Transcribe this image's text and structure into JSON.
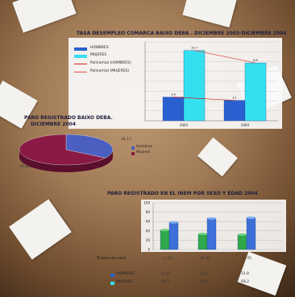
{
  "colors": {
    "men": "#2a5fd0",
    "women": "#34e0f0",
    "w2004": "#2ea84a",
    "m2004": "#3e6fd8",
    "pie_men": "#4a5fc0",
    "pie_women": "#8a1a44"
  },
  "chart_data": [
    {
      "type": "bar",
      "title": "TASA DESEMPLEO COMARCA BAIXO DEBA . DICIEMBRE 2003-DICIEMBRE 2004",
      "legend": [
        "HOMBRES",
        "MUJERES",
        "Polinomial (HOMBRES)",
        "Polinomial (MUJERES)"
      ],
      "categories": [
        "2003",
        "2004"
      ],
      "series": [
        {
          "name": "HOMBRES",
          "values": [
            3.6,
            3.1
          ]
        },
        {
          "name": "MUJERES",
          "values": [
            10.7,
            8.8
          ]
        }
      ],
      "data_labels": {
        "hombres": [
          "3,6",
          "3,1"
        ],
        "mujeres": [
          "10,7",
          "8,8"
        ]
      },
      "ylim": [
        0,
        12
      ],
      "grid": true,
      "legend_position": "left"
    },
    {
      "type": "pie",
      "title": "PARO REGISTRADO BAIXO DEBA. DICIEMBRE 2004",
      "labels": [
        "Hombres",
        "Mujeres"
      ],
      "values": [
        34.17,
        65.83
      ],
      "value_labels": [
        "34,17",
        "65,83"
      ],
      "legend_position": "right"
    },
    {
      "type": "bar",
      "title": "PARO REGISTRADO EN EL INEM POR SEXO Y EDAD 2004",
      "categories": [
        "< 25",
        "25-44",
        "> 45"
      ],
      "table_header": "Tramos de edad",
      "series": [
        {
          "name": "HOMBRES",
          "values": [
            41.8,
            33.4,
            31.8
          ]
        },
        {
          "name": "MUJERES",
          "values": [
            58.2,
            66.6,
            68.2
          ]
        }
      ],
      "table_values": {
        "hombres": [
          "41,8",
          "33,4",
          "31,8"
        ],
        "mujeres": [
          "58,2",
          "66,6",
          "68,2"
        ]
      },
      "yticks": [
        "0",
        "20",
        "40",
        "60",
        "80",
        "100"
      ],
      "ylim": [
        0,
        100
      ],
      "grid": true,
      "legend_position": "bottom-left"
    }
  ]
}
